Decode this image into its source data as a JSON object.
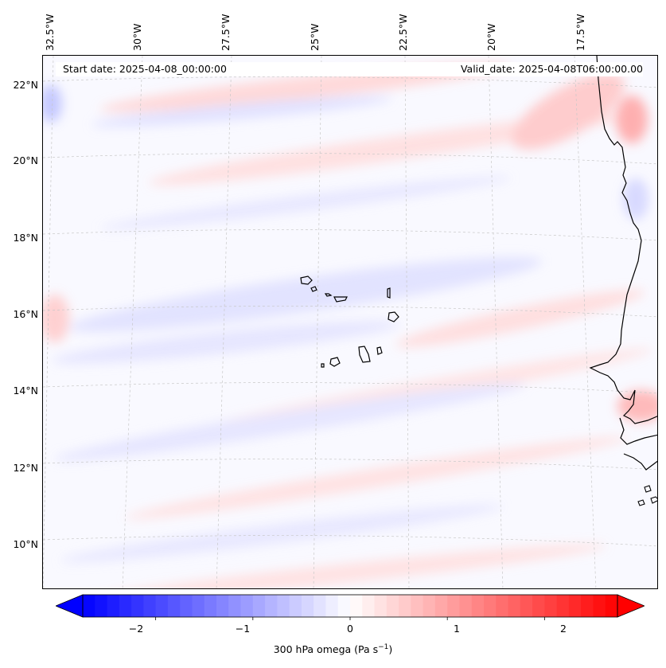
{
  "header": {
    "start_date": "Start date: 2025-04-08_00:00:00",
    "valid_date": "Valid_date: 2025-04-08T06:00:00.00"
  },
  "map": {
    "projection": "lambert-conformal",
    "field": "300 hPa omega",
    "lon_ticks": [
      "32.5°W",
      "30°W",
      "27.5°W",
      "25°W",
      "22.5°W",
      "20°W",
      "17.5°W"
    ],
    "lat_ticks": [
      "22°N",
      "20°N",
      "18°N",
      "16°N",
      "14°N",
      "12°N",
      "10°N"
    ],
    "gridlines": true,
    "coastline_color": "#000000",
    "features": [
      "cape-verde-islands",
      "west-africa-coastline"
    ]
  },
  "colorbar": {
    "colormap": "bwr",
    "min": -2.75,
    "max": 2.75,
    "extend": "both",
    "ticks": [
      "−2",
      "−1",
      "0",
      "1",
      "2"
    ],
    "tick_values": [
      -2,
      -1,
      0,
      1,
      2
    ],
    "label_text": "300 hPa omega (Pa s",
    "label_sup": "−1",
    "label_close": ")",
    "low_color": "#0000ff",
    "mid_color": "#ffffff",
    "high_color": "#ff0000"
  }
}
